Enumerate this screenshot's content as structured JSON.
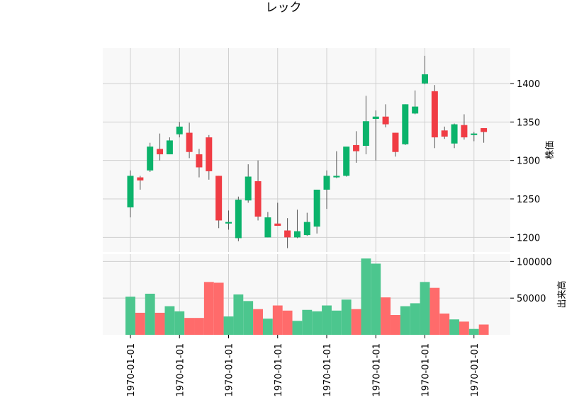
{
  "chart_data": {
    "type": "candlestick",
    "title": "レック",
    "price_ylabel": "株価",
    "volume_ylabel": "出来高",
    "price_ylim": [
      1181,
      1446
    ],
    "volume_ylim": [
      0,
      110000
    ],
    "price_yticks": [
      1200,
      1250,
      1300,
      1350,
      1400
    ],
    "volume_yticks": [
      50000,
      100000
    ],
    "xtick_labels": [
      "1970-01-01",
      "1970-01-01",
      "1970-01-01",
      "1970-01-01",
      "1970-01-01",
      "1970-01-01",
      "1970-01-01",
      "1970-01-01"
    ],
    "xtick_indices": [
      0,
      5,
      10,
      15,
      20,
      25,
      30,
      35
    ],
    "grid": true,
    "colors": {
      "up": "#0bb36b",
      "down": "#f03c44",
      "up_volume": "#4cc68e",
      "down_volume": "#ff6b6b",
      "wick": "#555555",
      "panel_bg": "#f8f8f8",
      "grid": "#d0d0d0"
    },
    "candles": [
      {
        "open": 1239,
        "high": 1287,
        "low": 1226,
        "close": 1280,
        "volume": 52000
      },
      {
        "open": 1278,
        "high": 1280,
        "low": 1262,
        "close": 1274,
        "volume": 30000
      },
      {
        "open": 1287,
        "high": 1323,
        "low": 1285,
        "close": 1318,
        "volume": 56000
      },
      {
        "open": 1315,
        "high": 1335,
        "low": 1300,
        "close": 1308,
        "volume": 30000
      },
      {
        "open": 1308,
        "high": 1330,
        "low": 1308,
        "close": 1326,
        "volume": 39000
      },
      {
        "open": 1334,
        "high": 1350,
        "low": 1330,
        "close": 1344,
        "volume": 32000
      },
      {
        "open": 1336,
        "high": 1349,
        "low": 1303,
        "close": 1311,
        "volume": 23000
      },
      {
        "open": 1308,
        "high": 1315,
        "low": 1278,
        "close": 1291,
        "volume": 23000
      },
      {
        "open": 1330,
        "high": 1333,
        "low": 1275,
        "close": 1286,
        "volume": 72000
      },
      {
        "open": 1280,
        "high": 1280,
        "low": 1212,
        "close": 1222,
        "volume": 71000
      },
      {
        "open": 1218,
        "high": 1235,
        "low": 1210,
        "close": 1220,
        "volume": 25000
      },
      {
        "open": 1199,
        "high": 1253,
        "low": 1195,
        "close": 1249,
        "volume": 55000
      },
      {
        "open": 1248,
        "high": 1295,
        "low": 1245,
        "close": 1279,
        "volume": 46000
      },
      {
        "open": 1273,
        "high": 1300,
        "low": 1222,
        "close": 1227,
        "volume": 35000
      },
      {
        "open": 1200,
        "high": 1233,
        "low": 1200,
        "close": 1226,
        "volume": 22000
      },
      {
        "open": 1218,
        "high": 1245,
        "low": 1215,
        "close": 1215,
        "volume": 40000
      },
      {
        "open": 1209,
        "high": 1225,
        "low": 1186,
        "close": 1200,
        "volume": 33000
      },
      {
        "open": 1200,
        "high": 1236,
        "low": 1199,
        "close": 1208,
        "volume": 19000
      },
      {
        "open": 1203,
        "high": 1232,
        "low": 1202,
        "close": 1220,
        "volume": 34000
      },
      {
        "open": 1214,
        "high": 1262,
        "low": 1205,
        "close": 1262,
        "volume": 32000
      },
      {
        "open": 1262,
        "high": 1287,
        "low": 1237,
        "close": 1280,
        "volume": 40000
      },
      {
        "open": 1278,
        "high": 1312,
        "low": 1277,
        "close": 1280,
        "volume": 33000
      },
      {
        "open": 1280,
        "high": 1317,
        "low": 1279,
        "close": 1318,
        "volume": 48000
      },
      {
        "open": 1320,
        "high": 1338,
        "low": 1297,
        "close": 1312,
        "volume": 35000
      },
      {
        "open": 1319,
        "high": 1384,
        "low": 1308,
        "close": 1351,
        "volume": 104000
      },
      {
        "open": 1354,
        "high": 1365,
        "low": 1300,
        "close": 1357,
        "volume": 97000
      },
      {
        "open": 1357,
        "high": 1373,
        "low": 1343,
        "close": 1347,
        "volume": 51000
      },
      {
        "open": 1336,
        "high": 1336,
        "low": 1305,
        "close": 1311,
        "volume": 27000
      },
      {
        "open": 1321,
        "high": 1373,
        "low": 1320,
        "close": 1373,
        "volume": 39000
      },
      {
        "open": 1361,
        "high": 1391,
        "low": 1360,
        "close": 1370,
        "volume": 43000
      },
      {
        "open": 1400,
        "high": 1436,
        "low": 1399,
        "close": 1412,
        "volume": 72000
      },
      {
        "open": 1390,
        "high": 1398,
        "low": 1316,
        "close": 1330,
        "volume": 64000
      },
      {
        "open": 1339,
        "high": 1344,
        "low": 1328,
        "close": 1331,
        "volume": 29000
      },
      {
        "open": 1322,
        "high": 1348,
        "low": 1316,
        "close": 1347,
        "volume": 21000
      },
      {
        "open": 1346,
        "high": 1360,
        "low": 1327,
        "close": 1330,
        "volume": 18000
      },
      {
        "open": 1333,
        "high": 1337,
        "low": 1325,
        "close": 1335,
        "volume": 8000
      },
      {
        "open": 1342,
        "high": 1342,
        "low": 1323,
        "close": 1337,
        "volume": 14000
      }
    ]
  }
}
